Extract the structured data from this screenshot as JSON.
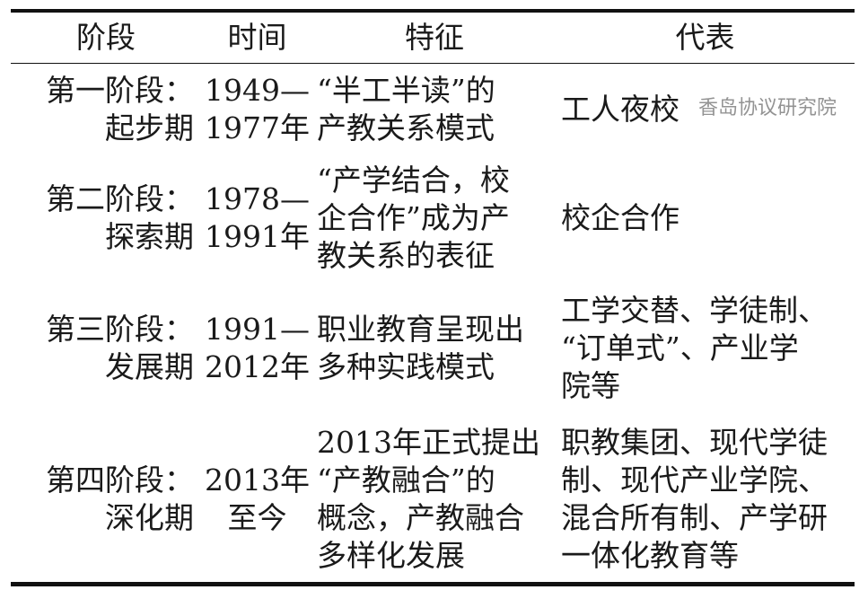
{
  "headers": [
    "阶段",
    "时间",
    "特征",
    "代表"
  ],
  "rows": [
    {
      "stage": [
        "第一阶段：",
        "起步期"
      ],
      "time": [
        "1949—",
        "1977年"
      ],
      "feature": [
        "“半工半读”的",
        "产教关系模式"
      ],
      "rep": [
        "工人夜校"
      ]
    },
    {
      "stage": [
        "第二阶段：",
        "探索期"
      ],
      "time": [
        "1978—",
        "1991年"
      ],
      "feature": [
        "“产学结合，校",
        "企合作”成为产",
        "教关系的表征"
      ],
      "rep": [
        "校企合作"
      ]
    },
    {
      "stage": [
        "第三阶段：",
        "发展期"
      ],
      "time": [
        "1991—",
        "2012年"
      ],
      "feature": [
        "职业教育呈现出",
        "多种实践模式"
      ],
      "rep": [
        "工学交替、学徒制、",
        "“订单式”、产业学",
        "院等"
      ]
    },
    {
      "stage": [
        "第四阶段：",
        "深化期"
      ],
      "time": [
        "2013年",
        "至今"
      ],
      "feature": [
        "2013年正式提出",
        "“产教融合”的",
        "概念，产教融合",
        "多样化发展"
      ],
      "rep": [
        "职教集团、现代学徒",
        "制、现代产业学院、",
        "混合所有制、产学研",
        "一体化教育等"
      ]
    }
  ],
  "watermark": "香岛协议研究院"
}
